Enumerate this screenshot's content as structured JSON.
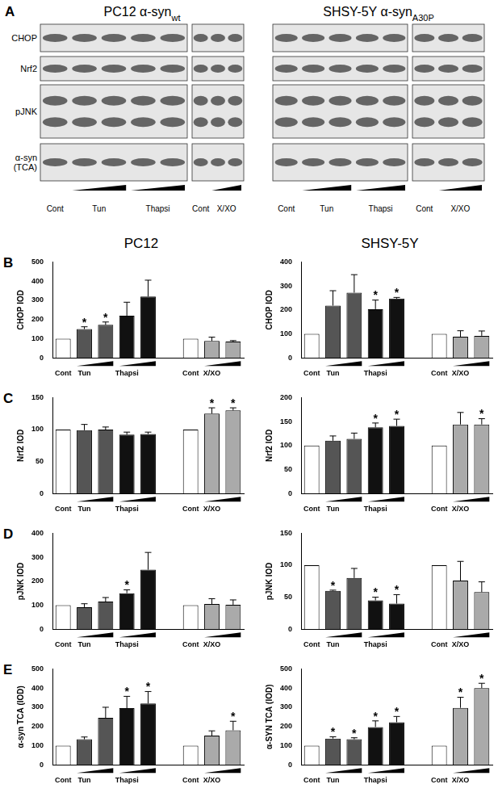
{
  "blots": {
    "panel": "A",
    "columns": [
      {
        "title": "PC12 α-syn",
        "subscript": "wt"
      },
      {
        "title": "SHSY-5Y α-syn",
        "subscript": "A30P"
      }
    ],
    "rows": [
      [
        "CHOP"
      ],
      [
        "Nrf2"
      ],
      [
        "pJNK"
      ],
      [
        "α-syn",
        "(TCA)"
      ]
    ],
    "lanes": [
      "Cont",
      "Tun",
      "Thapsi",
      "Cont",
      "X/XO"
    ]
  },
  "column_titles": [
    "PC12",
    "SHSY-5Y"
  ],
  "panel_letters": [
    "B",
    "C",
    "D",
    "E"
  ],
  "chart_data": [
    {
      "type": "bar",
      "y_label": "CHOP IOD",
      "categories": [
        "Cont",
        "Tun",
        null,
        "Thapsi",
        null,
        null,
        "Cont",
        "X/XO",
        null
      ],
      "values": [
        100,
        150,
        172,
        220,
        320,
        null,
        100,
        88,
        85
      ],
      "errors": [
        0,
        12,
        15,
        70,
        85,
        null,
        0,
        20,
        5
      ],
      "significance": [
        null,
        "*",
        "*",
        null,
        null,
        null,
        null,
        null,
        null
      ],
      "colors": [
        "#ffffff",
        "#555555",
        "#555555",
        "#111111",
        "#111111",
        null,
        "#ffffff",
        "#aaaaaa",
        "#aaaaaa"
      ],
      "ylim": [
        0,
        500
      ],
      "yticks": [
        0,
        100,
        200,
        300,
        400,
        500
      ],
      "grid": false
    },
    {
      "type": "bar",
      "y_label": "CHOP IOD",
      "categories": [
        "Cont",
        "Tun",
        null,
        "Thapsi",
        null,
        null,
        "Cont",
        "X/XO",
        null
      ],
      "values": [
        100,
        218,
        272,
        203,
        247,
        null,
        100,
        88,
        92
      ],
      "errors": [
        0,
        62,
        75,
        38,
        5,
        null,
        0,
        25,
        20
      ],
      "significance": [
        null,
        null,
        null,
        "*",
        "*",
        null,
        null,
        null,
        null
      ],
      "colors": [
        "#ffffff",
        "#555555",
        "#555555",
        "#111111",
        "#111111",
        null,
        "#ffffff",
        "#aaaaaa",
        "#aaaaaa"
      ],
      "ylim": [
        0,
        400
      ],
      "yticks": [
        0,
        100,
        200,
        300,
        400
      ],
      "grid": false
    },
    {
      "type": "bar",
      "y_label": "Nrf2 IOD",
      "categories": [
        "Cont",
        "Tun",
        null,
        "Thapsi",
        null,
        null,
        "Cont",
        "X/XO",
        null
      ],
      "values": [
        100,
        99,
        100,
        92,
        93,
        null,
        100,
        125,
        130
      ],
      "errors": [
        0,
        9,
        4,
        4,
        3,
        null,
        0,
        9,
        4
      ],
      "significance": [
        null,
        null,
        null,
        null,
        null,
        null,
        null,
        "*",
        "*"
      ],
      "colors": [
        "#ffffff",
        "#555555",
        "#555555",
        "#111111",
        "#111111",
        null,
        "#ffffff",
        "#aaaaaa",
        "#aaaaaa"
      ],
      "ylim": [
        0,
        150
      ],
      "yticks": [
        0,
        50,
        100,
        150
      ],
      "grid": false
    },
    {
      "type": "bar",
      "y_label": "Nrf2 IOD",
      "categories": [
        "Cont",
        "Tun",
        null,
        "Thapsi",
        null,
        null,
        "Cont",
        "X/XO",
        null
      ],
      "values": [
        100,
        110,
        114,
        138,
        141,
        null,
        100,
        144,
        144
      ],
      "errors": [
        0,
        10,
        12,
        9,
        14,
        null,
        0,
        25,
        12
      ],
      "significance": [
        null,
        null,
        null,
        "*",
        "*",
        null,
        null,
        null,
        "*"
      ],
      "colors": [
        "#ffffff",
        "#555555",
        "#555555",
        "#111111",
        "#111111",
        null,
        "#ffffff",
        "#aaaaaa",
        "#aaaaaa"
      ],
      "ylim": [
        0,
        200
      ],
      "yticks": [
        0,
        50,
        100,
        150,
        200
      ],
      "grid": false
    },
    {
      "type": "bar",
      "y_label": "pJNK IOD",
      "categories": [
        "Cont",
        "Tun",
        null,
        "Thapsi",
        null,
        null,
        "Cont",
        "X/XO",
        null
      ],
      "values": [
        100,
        92,
        115,
        150,
        248,
        null,
        100,
        105,
        102
      ],
      "errors": [
        0,
        14,
        17,
        14,
        72,
        null,
        0,
        22,
        20
      ],
      "significance": [
        null,
        null,
        null,
        "*",
        null,
        null,
        null,
        null,
        null
      ],
      "colors": [
        "#ffffff",
        "#555555",
        "#555555",
        "#111111",
        "#111111",
        null,
        "#ffffff",
        "#aaaaaa",
        "#aaaaaa"
      ],
      "ylim": [
        0,
        400
      ],
      "yticks": [
        0,
        100,
        200,
        300,
        400
      ],
      "grid": false
    },
    {
      "type": "bar",
      "y_label": "pJNK IOD",
      "categories": [
        "Cont",
        "Tun",
        null,
        "Thapsi",
        null,
        null,
        "Cont",
        "X/XO",
        null
      ],
      "values": [
        100,
        60,
        80,
        45,
        40,
        null,
        100,
        76,
        58
      ],
      "errors": [
        0,
        1,
        15,
        5,
        14,
        null,
        0,
        30,
        16
      ],
      "significance": [
        null,
        "*",
        null,
        "*",
        "*",
        null,
        null,
        null,
        null
      ],
      "colors": [
        "#ffffff",
        "#555555",
        "#555555",
        "#111111",
        "#111111",
        null,
        "#ffffff",
        "#aaaaaa",
        "#aaaaaa"
      ],
      "ylim": [
        0,
        150
      ],
      "yticks": [
        0,
        50,
        100,
        150
      ],
      "grid": false
    },
    {
      "type": "bar",
      "y_label": "α-syn TCA (IOD)",
      "categories": [
        "Cont",
        "Tun",
        null,
        "Thapsi",
        null,
        null,
        "Cont",
        "X/XO",
        null
      ],
      "values": [
        100,
        133,
        245,
        295,
        320,
        null,
        100,
        152,
        180
      ],
      "errors": [
        0,
        12,
        55,
        62,
        62,
        null,
        0,
        25,
        47
      ],
      "significance": [
        null,
        null,
        null,
        "*",
        "*",
        null,
        null,
        null,
        "*"
      ],
      "colors": [
        "#ffffff",
        "#555555",
        "#555555",
        "#111111",
        "#111111",
        null,
        "#ffffff",
        "#aaaaaa",
        "#aaaaaa"
      ],
      "ylim": [
        0,
        500
      ],
      "yticks": [
        0,
        100,
        200,
        300,
        400,
        500
      ],
      "grid": false
    },
    {
      "type": "bar",
      "y_label": "α-SYN TCA (IOD)",
      "categories": [
        "Cont",
        "Tun",
        null,
        "Thapsi",
        null,
        null,
        "Cont",
        "X/XO",
        null
      ],
      "values": [
        100,
        137,
        133,
        197,
        222,
        null,
        100,
        297,
        400
      ],
      "errors": [
        0,
        9,
        8,
        32,
        30,
        null,
        0,
        55,
        25
      ],
      "significance": [
        null,
        "*",
        "*",
        "*",
        "*",
        null,
        null,
        "*",
        "*"
      ],
      "colors": [
        "#ffffff",
        "#555555",
        "#555555",
        "#111111",
        "#111111",
        null,
        "#ffffff",
        "#aaaaaa",
        "#aaaaaa"
      ],
      "ylim": [
        0,
        500
      ],
      "yticks": [
        0,
        100,
        200,
        300,
        400,
        500
      ],
      "grid": false
    }
  ]
}
